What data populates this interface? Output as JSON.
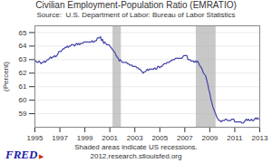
{
  "chart_data": {
    "type": "line",
    "title": "Civilian Employment-Population Ratio (EMRATIO)",
    "subtitle": "Source:  U.S. Department of Labor: Bureau of Labor Statistics",
    "caption": [
      "Shaded areas indicate US recessions.",
      "2012.research.stlouisfed.org"
    ],
    "annotations": [
      "FRED",
      "▶"
    ],
    "ylabel": "(Percent)",
    "color": "#4444aa",
    "recession_color": "#b0b0b0",
    "recessions": [
      [
        2001.25,
        2001.917
      ],
      [
        2007.917,
        2009.5
      ]
    ],
    "xlim": [
      1995.0,
      2013.0
    ],
    "ylim": [
      58.0,
      65.5
    ],
    "xticks": [
      1995,
      1997,
      1999,
      2001,
      2003,
      2005,
      2007,
      2009,
      2011,
      2013
    ],
    "yticks": [
      59,
      60,
      61,
      62,
      63,
      64,
      65
    ],
    "grid": true,
    "x": [
      1995.0,
      1995.083,
      1995.167,
      1995.25,
      1995.333,
      1995.417,
      1995.5,
      1995.583,
      1995.667,
      1995.75,
      1995.833,
      1995.917,
      1996.0,
      1996.083,
      1996.167,
      1996.25,
      1996.333,
      1996.417,
      1996.5,
      1996.583,
      1996.667,
      1996.75,
      1996.833,
      1996.917,
      1997.0,
      1997.083,
      1997.167,
      1997.25,
      1997.333,
      1997.417,
      1997.5,
      1997.583,
      1997.667,
      1997.75,
      1997.833,
      1997.917,
      1998.0,
      1998.083,
      1998.167,
      1998.25,
      1998.333,
      1998.417,
      1998.5,
      1998.583,
      1998.667,
      1998.75,
      1998.833,
      1998.917,
      1999.0,
      1999.083,
      1999.167,
      1999.25,
      1999.333,
      1999.417,
      1999.5,
      1999.583,
      1999.667,
      1999.75,
      1999.833,
      1999.917,
      2000.0,
      2000.083,
      2000.167,
      2000.25,
      2000.333,
      2000.417,
      2000.5,
      2000.583,
      2000.667,
      2000.75,
      2000.833,
      2000.917,
      2001.0,
      2001.083,
      2001.167,
      2001.25,
      2001.333,
      2001.417,
      2001.5,
      2001.583,
      2001.667,
      2001.75,
      2001.833,
      2001.917,
      2002.0,
      2002.083,
      2002.167,
      2002.25,
      2002.333,
      2002.417,
      2002.5,
      2002.583,
      2002.667,
      2002.75,
      2002.833,
      2002.917,
      2003.0,
      2003.083,
      2003.167,
      2003.25,
      2003.333,
      2003.417,
      2003.5,
      2003.583,
      2003.667,
      2003.75,
      2003.833,
      2003.917,
      2004.0,
      2004.083,
      2004.167,
      2004.25,
      2004.333,
      2004.417,
      2004.5,
      2004.583,
      2004.667,
      2004.75,
      2004.833,
      2004.917,
      2005.0,
      2005.083,
      2005.167,
      2005.25,
      2005.333,
      2005.417,
      2005.5,
      2005.583,
      2005.667,
      2005.75,
      2005.833,
      2005.917,
      2006.0,
      2006.083,
      2006.167,
      2006.25,
      2006.333,
      2006.417,
      2006.5,
      2006.583,
      2006.667,
      2006.75,
      2006.833,
      2006.917,
      2007.0,
      2007.083,
      2007.167,
      2007.25,
      2007.333,
      2007.417,
      2007.5,
      2007.583,
      2007.667,
      2007.75,
      2007.833,
      2007.917,
      2008.0,
      2008.083,
      2008.167,
      2008.25,
      2008.333,
      2008.417,
      2008.5,
      2008.583,
      2008.667,
      2008.75,
      2008.833,
      2008.917,
      2009.0,
      2009.083,
      2009.167,
      2009.25,
      2009.333,
      2009.417,
      2009.5,
      2009.583,
      2009.667,
      2009.75,
      2009.833,
      2009.917,
      2010.0,
      2010.083,
      2010.167,
      2010.25,
      2010.333,
      2010.417,
      2010.5,
      2010.583,
      2010.667,
      2010.75,
      2010.833,
      2010.917,
      2011.0,
      2011.083,
      2011.167,
      2011.25,
      2011.333,
      2011.417,
      2011.5,
      2011.583,
      2011.667,
      2011.75,
      2011.833,
      2011.917,
      2012.0,
      2012.083,
      2012.167,
      2012.25,
      2012.333,
      2012.417,
      2012.5,
      2012.583,
      2012.667,
      2012.75,
      2012.833,
      2012.917
    ],
    "values": [
      62.9,
      62.9,
      62.8,
      62.8,
      62.9,
      62.8,
      62.7,
      62.8,
      62.8,
      62.9,
      62.8,
      62.9,
      63.0,
      63.0,
      63.1,
      63.2,
      63.1,
      63.2,
      63.2,
      63.3,
      63.2,
      63.3,
      63.4,
      63.6,
      63.6,
      63.6,
      63.7,
      63.8,
      63.8,
      63.9,
      63.9,
      64.0,
      63.9,
      64.0,
      64.0,
      64.1,
      64.1,
      64.1,
      64.0,
      64.1,
      64.2,
      64.1,
      64.2,
      64.1,
      64.2,
      64.2,
      64.2,
      64.3,
      64.3,
      64.3,
      64.3,
      64.3,
      64.3,
      64.3,
      64.3,
      64.4,
      64.3,
      64.3,
      64.4,
      64.4,
      64.6,
      64.6,
      64.6,
      64.7,
      64.4,
      64.5,
      64.2,
      64.3,
      64.2,
      64.1,
      64.1,
      64.1,
      64.0,
      63.9,
      63.8,
      63.7,
      63.6,
      63.5,
      63.3,
      63.2,
      63.1,
      62.9,
      63.0,
      62.9,
      62.8,
      62.8,
      62.8,
      62.8,
      62.8,
      62.7,
      62.7,
      62.6,
      62.6,
      62.6,
      62.5,
      62.5,
      62.5,
      62.5,
      62.4,
      62.4,
      62.3,
      62.3,
      62.2,
      62.1,
      62.0,
      62.1,
      62.1,
      62.2,
      62.3,
      62.2,
      62.3,
      62.3,
      62.3,
      62.3,
      62.3,
      62.4,
      62.3,
      62.3,
      62.5,
      62.5,
      62.4,
      62.5,
      62.5,
      62.6,
      62.7,
      62.7,
      62.7,
      62.8,
      62.8,
      62.8,
      62.9,
      62.9,
      63.0,
      63.0,
      63.0,
      63.1,
      63.1,
      63.1,
      63.1,
      63.1,
      63.1,
      63.1,
      63.2,
      63.3,
      63.3,
      63.3,
      63.3,
      63.0,
      63.0,
      63.0,
      62.9,
      62.9,
      62.9,
      62.8,
      62.9,
      62.8,
      62.9,
      62.8,
      62.6,
      62.5,
      62.4,
      62.2,
      62.0,
      61.9,
      61.8,
      61.5,
      61.2,
      60.8,
      60.5,
      60.1,
      59.8,
      59.5,
      59.3,
      59.1,
      58.9,
      58.7,
      58.6,
      58.5,
      58.5,
      58.4,
      58.5,
      58.5,
      58.5,
      58.6,
      58.6,
      58.5,
      58.5,
      58.5,
      58.5,
      58.6,
      58.6,
      58.6,
      58.4,
      58.4,
      58.4,
      58.4,
      58.4,
      58.4,
      58.4,
      58.3,
      58.3,
      58.4,
      58.5,
      58.6,
      58.5,
      58.6,
      58.5,
      58.5,
      58.6,
      58.5,
      58.5,
      58.6,
      58.7,
      58.6,
      58.7,
      58.6
    ]
  }
}
